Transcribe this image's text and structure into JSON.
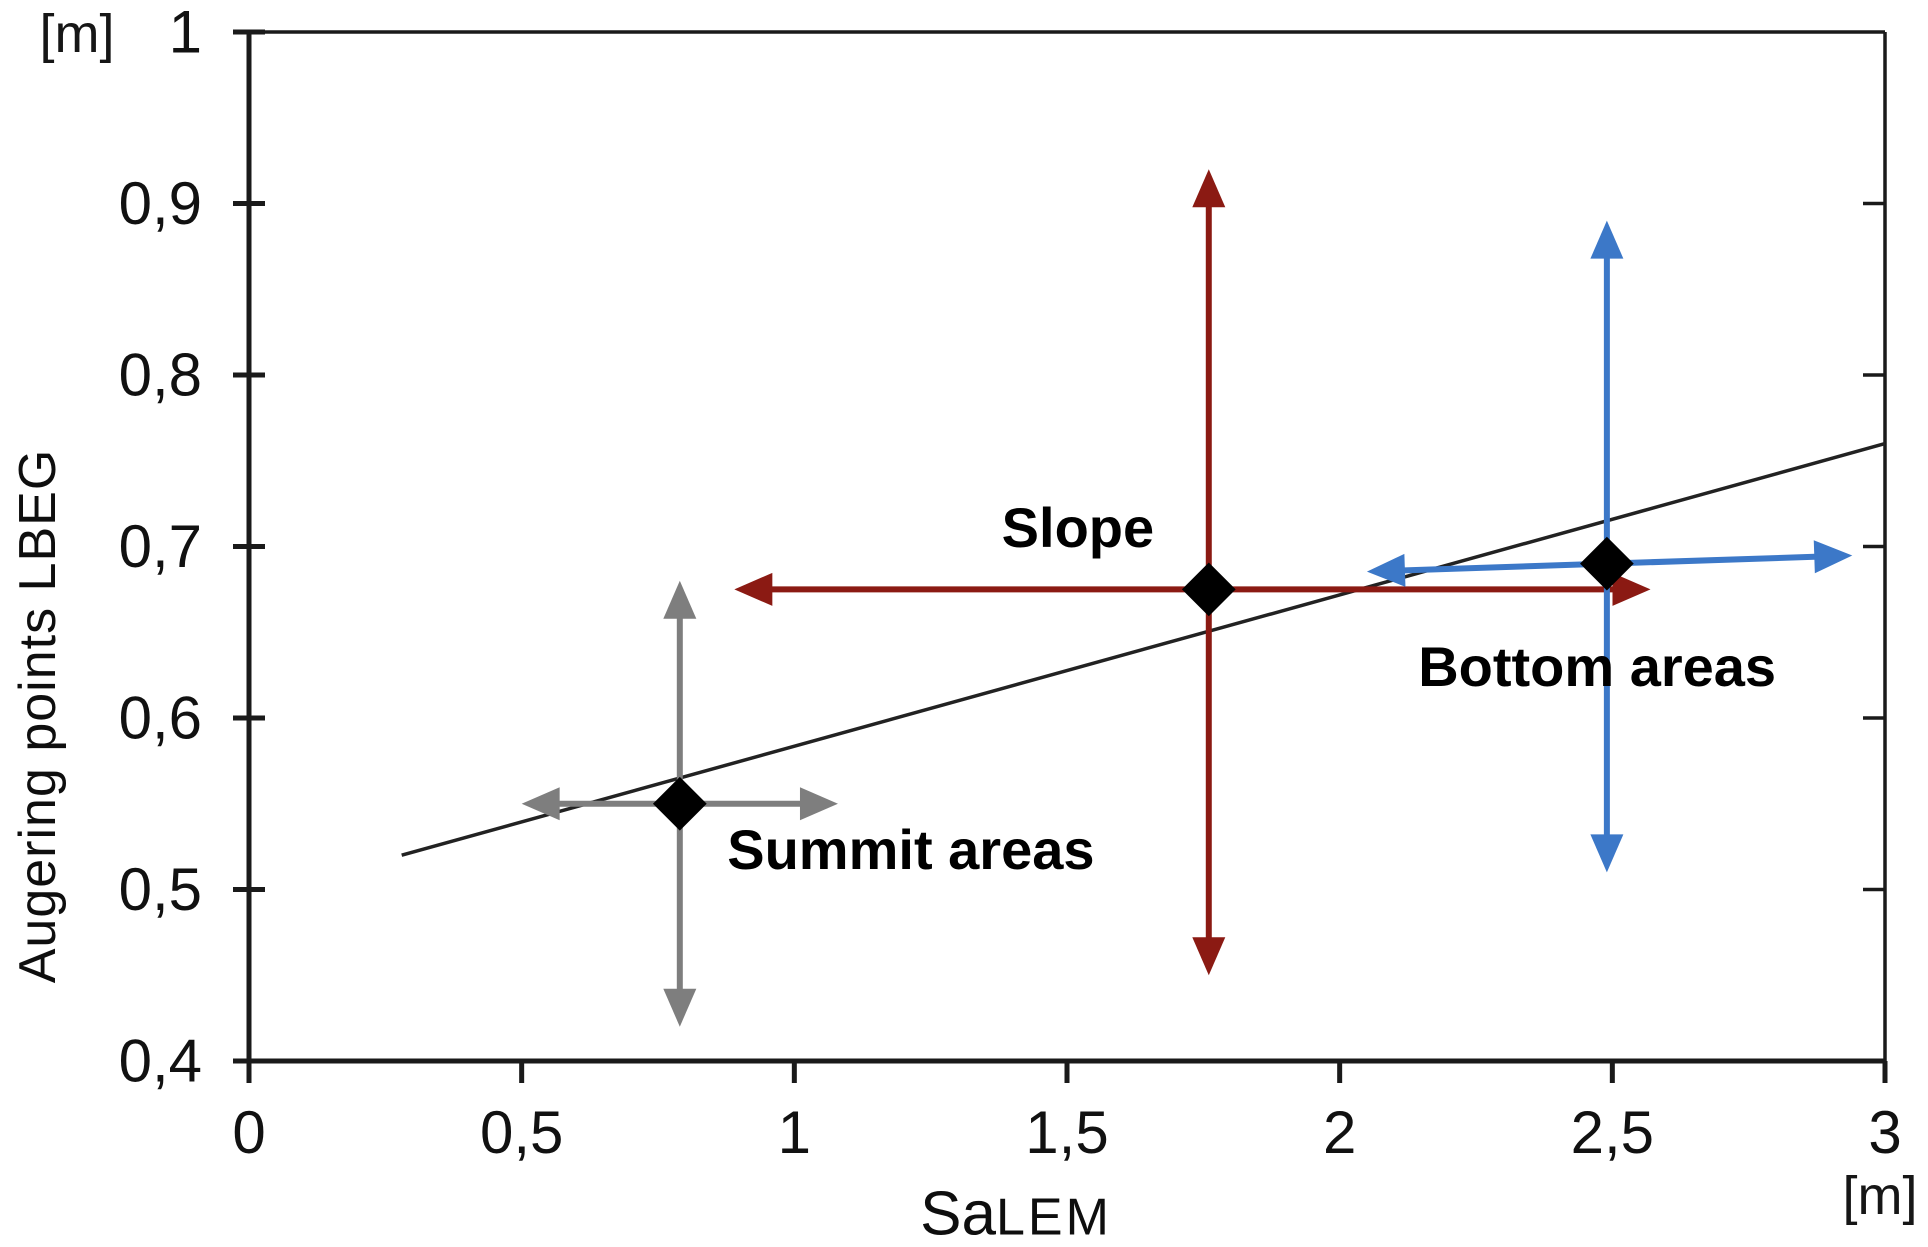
{
  "figure": {
    "y_axis_unit": "[m]",
    "x_axis_unit": "[m]",
    "y_axis_title": "Augering points LBEG",
    "x_axis_title_main": "Sa",
    "x_axis_title_sub": "LEM"
  },
  "chart_data": {
    "type": "scatter",
    "title": "",
    "xlabel": "SaLEM",
    "ylabel": "Augering points LBEG",
    "x_unit": "[m]",
    "y_unit": "[m]",
    "xlim": [
      0,
      3
    ],
    "ylim": [
      0.4,
      1.0
    ],
    "grid": false,
    "legend_position": "none",
    "decimal_separator": ",",
    "x_ticks": [
      {
        "value": 0,
        "label": "0"
      },
      {
        "value": 0.5,
        "label": "0,5"
      },
      {
        "value": 1,
        "label": "1"
      },
      {
        "value": 1.5,
        "label": "1,5"
      },
      {
        "value": 2,
        "label": "2"
      },
      {
        "value": 2.5,
        "label": "2,5"
      },
      {
        "value": 3,
        "label": "3"
      }
    ],
    "y_ticks": [
      {
        "value": 1.0,
        "label": "1"
      },
      {
        "value": 0.9,
        "label": "0,9"
      },
      {
        "value": 0.8,
        "label": "0,8"
      },
      {
        "value": 0.7,
        "label": "0,7"
      },
      {
        "value": 0.6,
        "label": "0,6"
      },
      {
        "value": 0.5,
        "label": "0,5"
      },
      {
        "value": 0.4,
        "label": "0,4"
      }
    ],
    "trend_line": {
      "x1": 0.28,
      "y1": 0.52,
      "x2": 3.0,
      "y2": 0.76,
      "color": "#222222",
      "style": "solid"
    },
    "marker": {
      "shape": "diamond",
      "color": "#000000"
    },
    "points": [
      {
        "label": "Summit areas",
        "x": 0.79,
        "y": 0.55,
        "x_range": [
          0.5,
          1.08
        ],
        "y_range": [
          0.42,
          0.68
        ],
        "color": "#7e7e7e",
        "label_align": "left",
        "label_anchor": {
          "x": 0.877,
          "y": 0.523
        }
      },
      {
        "label": "Slope",
        "x": 1.76,
        "y": 0.675,
        "x_range": [
          0.89,
          2.57
        ],
        "y_range": [
          0.45,
          0.92
        ],
        "color": "#8b1a13",
        "label_align": "center",
        "label_anchor": {
          "x": 1.52,
          "y": 0.711
        }
      },
      {
        "label": "Bottom areas",
        "x": 2.49,
        "y": 0.69,
        "x_range": [
          2.05,
          2.94
        ],
        "y_range": [
          0.51,
          0.89
        ],
        "color": "#3c78c8",
        "label_align": "left",
        "label_anchor": {
          "x": 2.144,
          "y": 0.63
        },
        "xbar_tilt_deg": -1.9
      }
    ]
  }
}
